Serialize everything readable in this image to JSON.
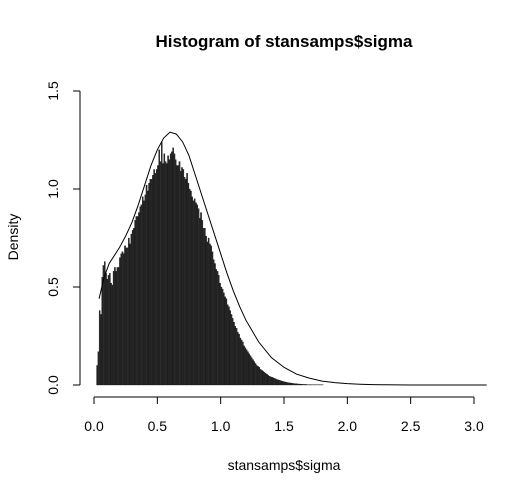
{
  "chart_data": {
    "type": "bar",
    "title": "Histogram of stansamps$sigma",
    "xlabel": "stansamps$sigma",
    "ylabel": "Density",
    "xlim": [
      0.0,
      3.1
    ],
    "ylim": [
      0.0,
      1.5
    ],
    "x_ticks": [
      "0.0",
      "0.5",
      "1.0",
      "1.5",
      "2.0",
      "2.5",
      "3.0"
    ],
    "y_ticks": [
      "0.0",
      "0.5",
      "1.0",
      "1.5"
    ],
    "grid": false,
    "bin_width": 0.01,
    "bin_start": 0.02,
    "histogram_densities": [
      0.1,
      0.17,
      0.38,
      0.36,
      0.55,
      0.61,
      0.63,
      0.57,
      0.54,
      0.56,
      0.57,
      0.52,
      0.51,
      0.58,
      0.6,
      0.58,
      0.6,
      0.6,
      0.65,
      0.67,
      0.68,
      0.67,
      0.71,
      0.7,
      0.7,
      0.75,
      0.72,
      0.77,
      0.79,
      0.8,
      0.84,
      0.86,
      0.86,
      0.88,
      0.91,
      0.92,
      0.96,
      0.94,
      0.97,
      1.02,
      0.99,
      1.03,
      1.05,
      1.05,
      1.07,
      1.1,
      1.08,
      1.1,
      1.12,
      1.2,
      1.14,
      1.24,
      1.13,
      1.18,
      1.14,
      1.13,
      1.17,
      1.15,
      1.18,
      1.19,
      1.21,
      1.18,
      1.15,
      1.12,
      1.12,
      1.14,
      1.09,
      1.11,
      1.1,
      1.06,
      1.05,
      1.08,
      1.03,
      1.0,
      0.99,
      0.96,
      0.94,
      0.95,
      0.93,
      0.92,
      0.9,
      0.85,
      0.88,
      0.84,
      0.8,
      0.8,
      0.76,
      0.73,
      0.75,
      0.72,
      0.71,
      0.68,
      0.64,
      0.62,
      0.59,
      0.58,
      0.56,
      0.52,
      0.5,
      0.49,
      0.47,
      0.45,
      0.44,
      0.41,
      0.4,
      0.38,
      0.36,
      0.34,
      0.32,
      0.3,
      0.29,
      0.27,
      0.26,
      0.24,
      0.23,
      0.22,
      0.2,
      0.19,
      0.18,
      0.17,
      0.16,
      0.15,
      0.14,
      0.13,
      0.12,
      0.11,
      0.1,
      0.095,
      0.09,
      0.08,
      0.075,
      0.07,
      0.065,
      0.06,
      0.055,
      0.05,
      0.045,
      0.042,
      0.04,
      0.037,
      0.034,
      0.031,
      0.028,
      0.026,
      0.024,
      0.022,
      0.02,
      0.018,
      0.016,
      0.015,
      0.013,
      0.012,
      0.011,
      0.01,
      0.009,
      0.008,
      0.007,
      0.007,
      0.006,
      0.005,
      0.005,
      0.004,
      0.004,
      0.003,
      0.003,
      0.003,
      0.002,
      0.002,
      0.002,
      0.002,
      0.001,
      0.001,
      0.001,
      0.001,
      0.001,
      0.001,
      0.001,
      0.001,
      0.001,
      0.0,
      0.0,
      0.0,
      0.0,
      0.0,
      0.0
    ],
    "density_curve": {
      "x": [
        0.04,
        0.08,
        0.12,
        0.16,
        0.2,
        0.25,
        0.3,
        0.35,
        0.4,
        0.45,
        0.5,
        0.55,
        0.6,
        0.65,
        0.7,
        0.75,
        0.8,
        0.85,
        0.9,
        0.95,
        1.0,
        1.05,
        1.1,
        1.15,
        1.2,
        1.3,
        1.4,
        1.5,
        1.6,
        1.7,
        1.8,
        1.9,
        2.0,
        2.1,
        2.2,
        2.3,
        2.4,
        2.5,
        3.1
      ],
      "y": [
        0.44,
        0.55,
        0.62,
        0.66,
        0.7,
        0.76,
        0.83,
        0.92,
        1.02,
        1.12,
        1.2,
        1.26,
        1.29,
        1.28,
        1.24,
        1.17,
        1.07,
        0.97,
        0.87,
        0.77,
        0.67,
        0.57,
        0.48,
        0.4,
        0.33,
        0.22,
        0.14,
        0.09,
        0.055,
        0.035,
        0.02,
        0.012,
        0.007,
        0.004,
        0.002,
        0.001,
        0.0005,
        0.0,
        0.0
      ]
    }
  }
}
